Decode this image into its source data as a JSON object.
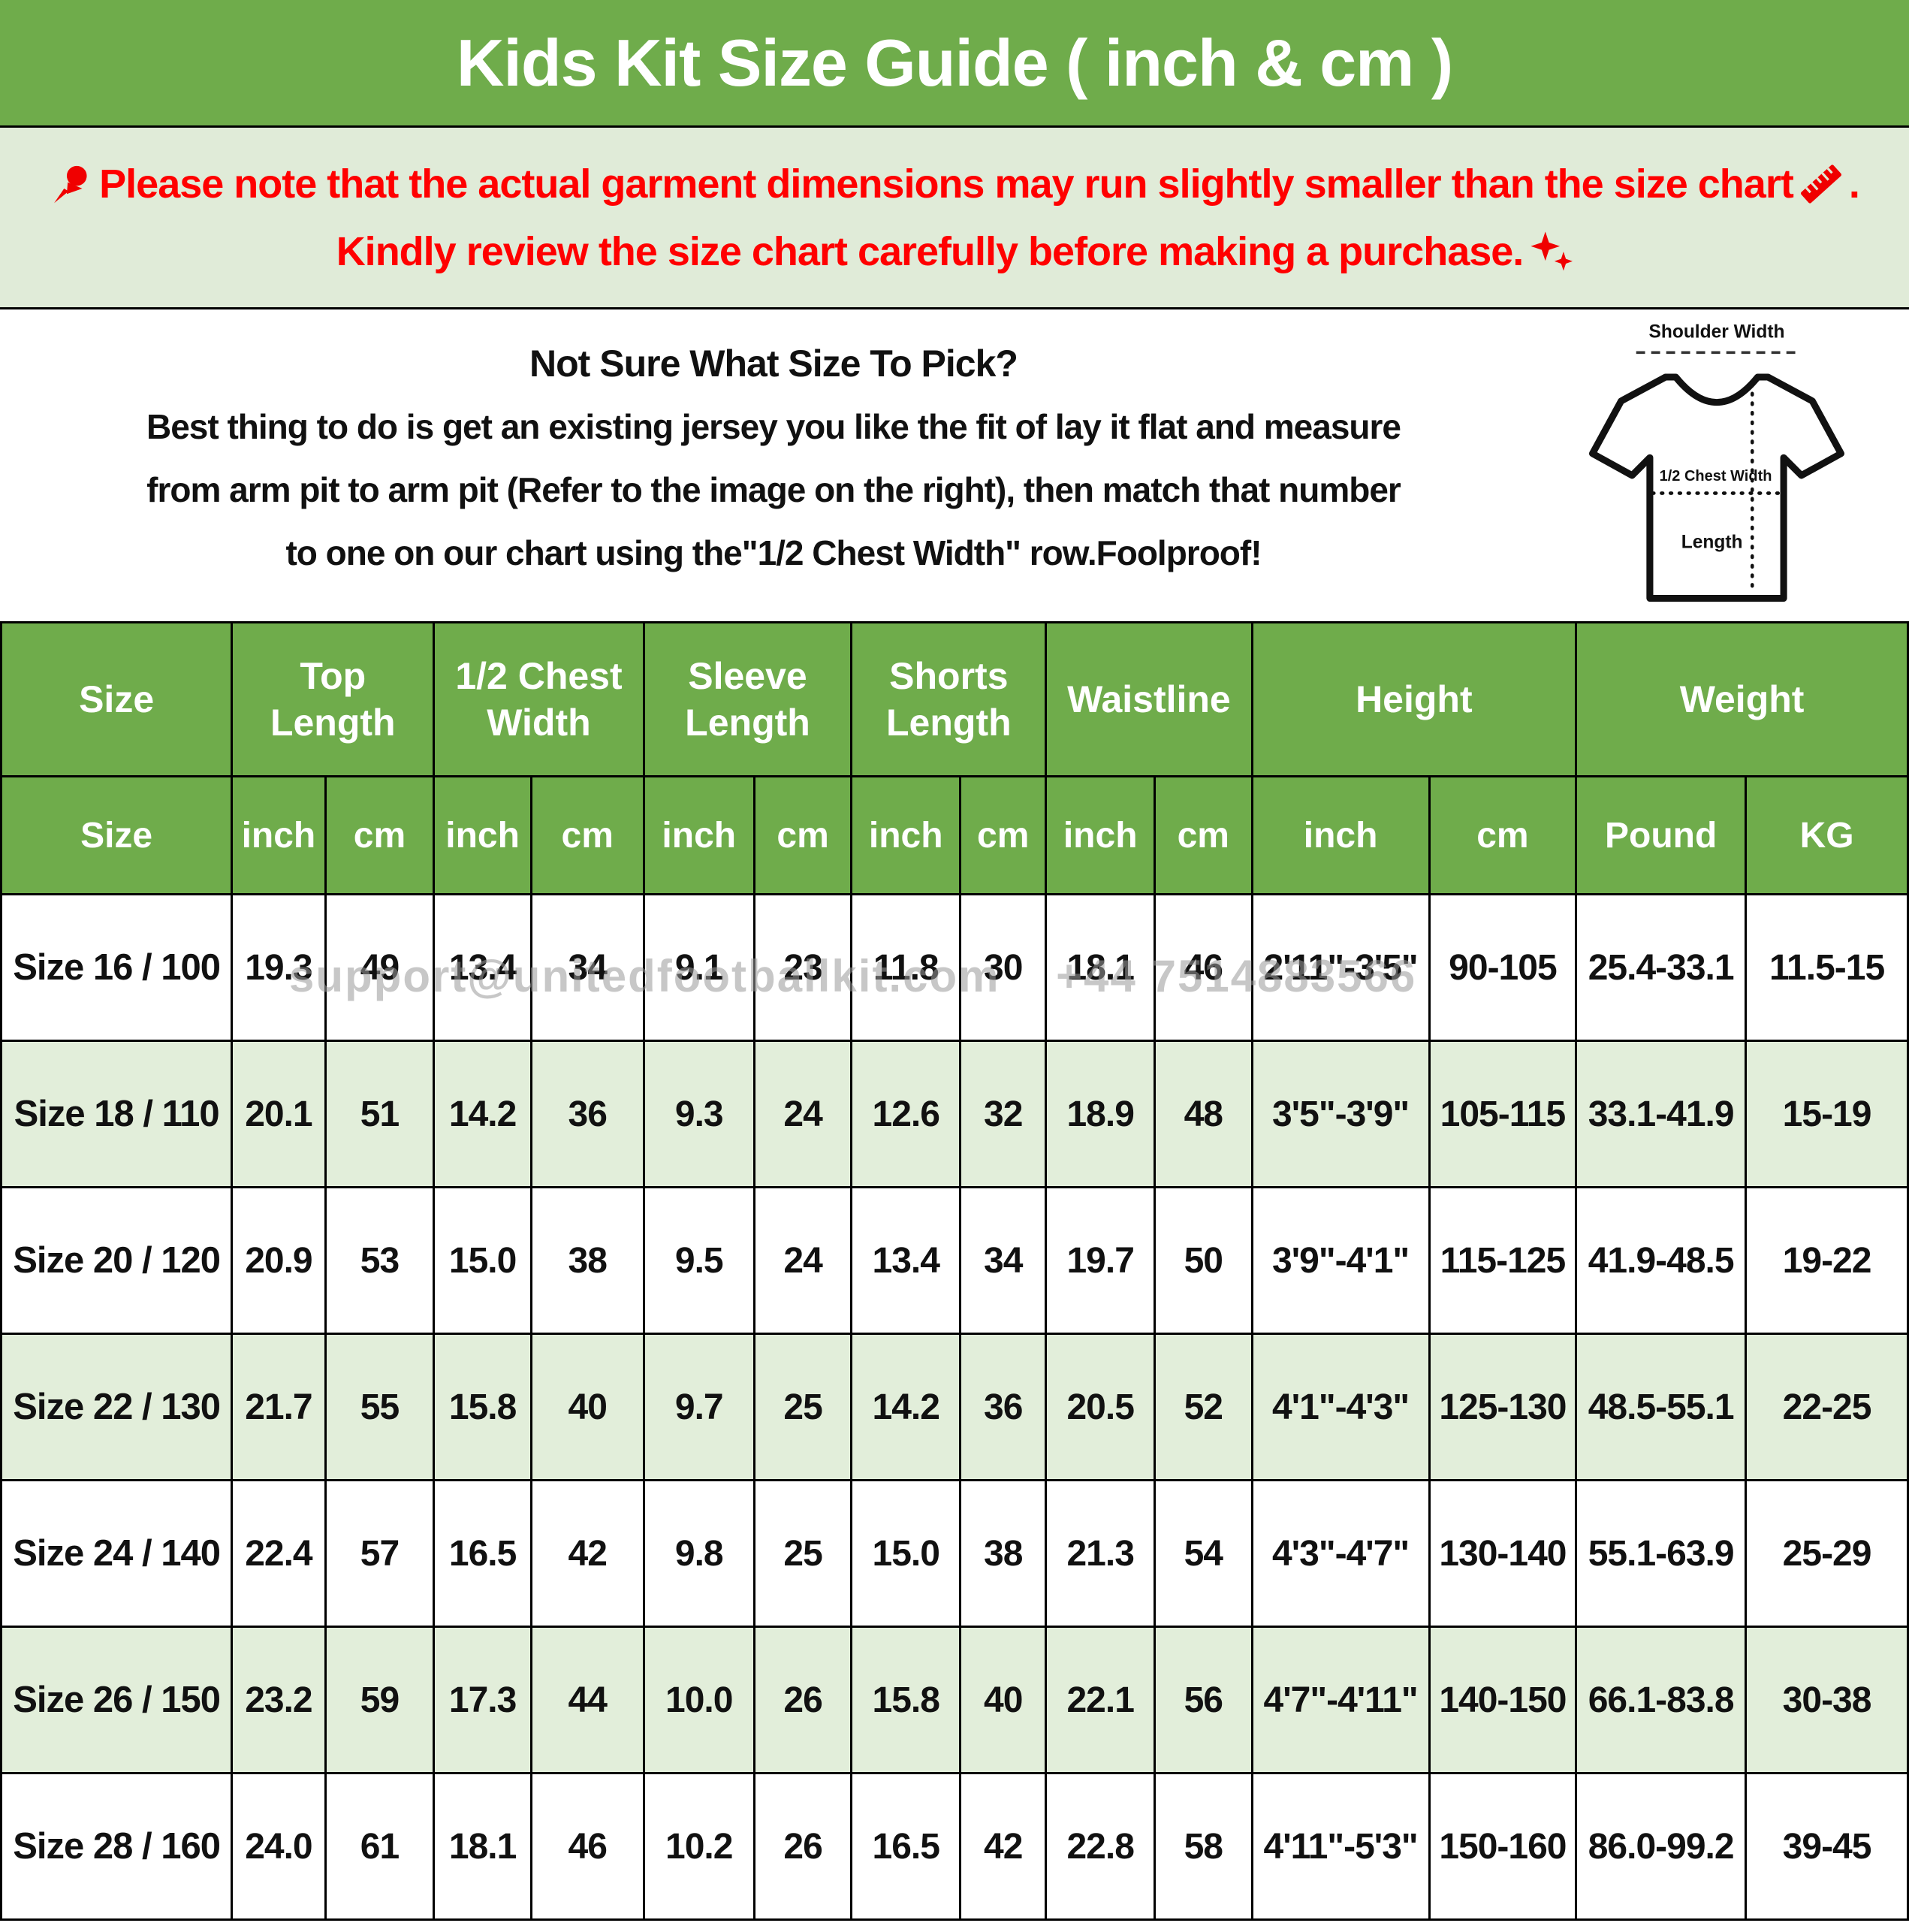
{
  "title": "Kids Kit Size Guide ( inch & cm )",
  "notice": {
    "pin_icon": "pushpin-icon",
    "ruler_icon": "ruler-icon",
    "sparkles_icon": "sparkles-icon",
    "line1_text": "Please note that the actual garment dimensions may run slightly smaller than the size chart",
    "line1_suffix": ".",
    "line2_text": "Kindly review the size chart carefully before making a purchase."
  },
  "howto": {
    "heading": "Not Sure What Size To Pick?",
    "line2": "Best thing to do is get an existing jersey you like the fit of lay it flat and measure",
    "line3": "from arm pit to arm pit (Refer to the image on the right), then match that number",
    "line4": "to one on our chart using the\"1/2 Chest Width\" row.Foolproof!"
  },
  "diagram": {
    "shoulder_label": "Shoulder Width",
    "chest_label": "1/2 Chest Width",
    "length_label": "Length"
  },
  "table": {
    "group_headers": [
      "Size",
      "Top Length",
      "1/2 Chest Width",
      "Sleeve Length",
      "Shorts Length",
      "Waistline",
      "Height",
      "Weight"
    ],
    "sub_headers": [
      "Size",
      "inch",
      "cm",
      "inch",
      "cm",
      "inch",
      "cm",
      "inch",
      "cm",
      "inch",
      "cm",
      "inch",
      "cm",
      "Pound",
      "KG"
    ],
    "rows": [
      [
        "Size 16 / 100",
        "19.3",
        "49",
        "13.4",
        "34",
        "9.1",
        "23",
        "11.8",
        "30",
        "18.1",
        "46",
        "2'11\"-3'5\"",
        "90-105",
        "25.4-33.1",
        "11.5-15"
      ],
      [
        "Size 18 / 110",
        "20.1",
        "51",
        "14.2",
        "36",
        "9.3",
        "24",
        "12.6",
        "32",
        "18.9",
        "48",
        "3'5\"-3'9\"",
        "105-115",
        "33.1-41.9",
        "15-19"
      ],
      [
        "Size 20 / 120",
        "20.9",
        "53",
        "15.0",
        "38",
        "9.5",
        "24",
        "13.4",
        "34",
        "19.7",
        "50",
        "3'9\"-4'1\"",
        "115-125",
        "41.9-48.5",
        "19-22"
      ],
      [
        "Size 22 / 130",
        "21.7",
        "55",
        "15.8",
        "40",
        "9.7",
        "25",
        "14.2",
        "36",
        "20.5",
        "52",
        "4'1\"-4'3\"",
        "125-130",
        "48.5-55.1",
        "22-25"
      ],
      [
        "Size 24 / 140",
        "22.4",
        "57",
        "16.5",
        "42",
        "9.8",
        "25",
        "15.0",
        "38",
        "21.3",
        "54",
        "4'3\"-4'7\"",
        "130-140",
        "55.1-63.9",
        "25-29"
      ],
      [
        "Size 26 / 150",
        "23.2",
        "59",
        "17.3",
        "44",
        "10.0",
        "26",
        "15.8",
        "40",
        "22.1",
        "56",
        "4'7\"-4'11\"",
        "140-150",
        "66.1-83.8",
        "30-38"
      ],
      [
        "Size 28 / 160",
        "24.0",
        "61",
        "18.1",
        "46",
        "10.2",
        "26",
        "16.5",
        "42",
        "22.8",
        "58",
        "4'11\"-5'3\"",
        "150-160",
        "86.0-99.2",
        "39-45"
      ]
    ]
  },
  "watermark": "support@unitedfootballkit.com    +44 7514883566",
  "colors": {
    "header_green": "#6FAC4B",
    "stripe_green": "#E2EEDA",
    "note_bg": "#E0EBD8",
    "notice_red": "#FF0000",
    "watermark_gray": "#9A9A9A"
  }
}
